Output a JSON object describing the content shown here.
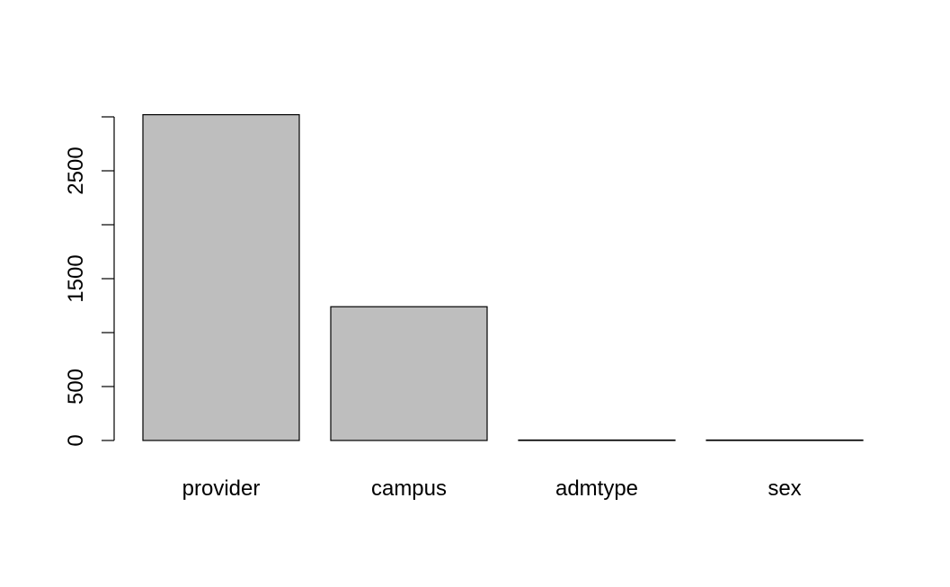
{
  "chart_data": {
    "type": "bar",
    "title": "",
    "xlabel": "",
    "ylabel": "",
    "categories": [
      "provider",
      "campus",
      "admtype",
      "sex"
    ],
    "values": [
      3020,
      1240,
      4,
      2
    ],
    "ylim": [
      0,
      3000
    ],
    "y_ticks": [
      0,
      500,
      1000,
      1500,
      2000,
      2500,
      3000
    ],
    "y_tick_labels": [
      "0",
      "500",
      "",
      "1500",
      "",
      "2500",
      ""
    ],
    "grid": false,
    "bar_fill": "#bebebe",
    "bar_stroke": "#000000"
  }
}
